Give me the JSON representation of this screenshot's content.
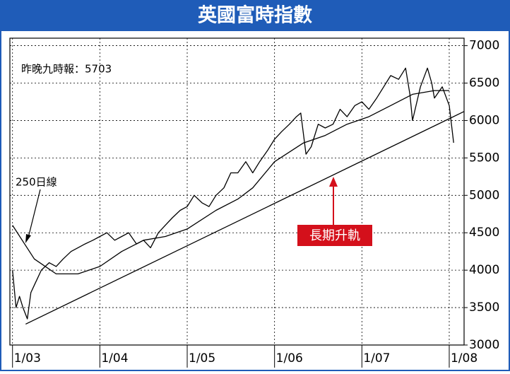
{
  "chart_data": {
    "type": "line",
    "title": "英國富時指數",
    "annotations": {
      "latest": "昨晚九時報：5703",
      "ma_label": "250日線",
      "trend_label": "長期升軌"
    },
    "xlim": [
      2002.97,
      2008.17
    ],
    "xticks": [
      {
        "value": 2003,
        "label": "1/03"
      },
      {
        "value": 2004,
        "label": "1/04"
      },
      {
        "value": 2005,
        "label": "1/05"
      },
      {
        "value": 2006,
        "label": "1/06"
      },
      {
        "value": 2007,
        "label": "1/07"
      },
      {
        "value": 2008,
        "label": "1/08"
      }
    ],
    "ylim": [
      3000,
      7100
    ],
    "yticks": [
      3000,
      3500,
      4000,
      4500,
      5000,
      5500,
      6000,
      6500,
      7000
    ],
    "grid": true,
    "series": [
      {
        "color": "#000000",
        "width": 1.3,
        "x": [
          2003.0,
          2003.04,
          2003.08,
          2003.12,
          2003.17,
          2003.21,
          2003.25,
          2003.33,
          2003.42,
          2003.5,
          2003.58,
          2003.67,
          2003.75,
          2003.83,
          2003.92,
          2004.0,
          2004.08,
          2004.17,
          2004.25,
          2004.33,
          2004.42,
          2004.5,
          2004.58,
          2004.67,
          2004.75,
          2004.83,
          2004.92,
          2005.0,
          2005.08,
          2005.17,
          2005.25,
          2005.33,
          2005.42,
          2005.5,
          2005.58,
          2005.67,
          2005.75,
          2005.83,
          2005.92,
          2006.0,
          2006.08,
          2006.17,
          2006.25,
          2006.3,
          2006.36,
          2006.42,
          2006.5,
          2006.58,
          2006.67,
          2006.75,
          2006.83,
          2006.92,
          2007.0,
          2007.08,
          2007.17,
          2007.25,
          2007.33,
          2007.42,
          2007.5,
          2007.55,
          2007.58,
          2007.67,
          2007.75,
          2007.8,
          2007.83,
          2007.92,
          2008.0,
          2008.05
        ],
        "values": [
          4000,
          3500,
          3650,
          3500,
          3350,
          3700,
          3800,
          4000,
          4100,
          4050,
          4150,
          4250,
          4300,
          4350,
          4400,
          4450,
          4500,
          4400,
          4450,
          4500,
          4350,
          4400,
          4300,
          4500,
          4600,
          4700,
          4800,
          4850,
          5000,
          4900,
          4850,
          5000,
          5100,
          5300,
          5300,
          5450,
          5300,
          5450,
          5600,
          5750,
          5850,
          5950,
          6050,
          6100,
          5550,
          5650,
          5950,
          5900,
          5950,
          6150,
          6050,
          6200,
          6250,
          6150,
          6300,
          6450,
          6600,
          6550,
          6700,
          6350,
          6000,
          6450,
          6700,
          6500,
          6300,
          6450,
          6200,
          5703
        ]
      },
      {
        "color": "#000000",
        "width": 1.3,
        "x": [
          2003.0,
          2003.25,
          2003.5,
          2003.75,
          2004.0,
          2004.25,
          2004.5,
          2004.75,
          2005.0,
          2005.33,
          2005.58,
          2005.75,
          2006.0,
          2006.33,
          2006.58,
          2006.83,
          2007.08,
          2007.33,
          2007.58,
          2007.83,
          2008.0
        ],
        "values": [
          4600,
          4150,
          3950,
          3950,
          4050,
          4250,
          4400,
          4450,
          4550,
          4800,
          4950,
          5100,
          5450,
          5700,
          5800,
          5950,
          6050,
          6200,
          6350,
          6400,
          6400
        ]
      },
      {
        "color": "#000000",
        "width": 1.3,
        "x": [
          2003.15,
          2008.17
        ],
        "values": [
          3280,
          6120
        ]
      }
    ]
  }
}
